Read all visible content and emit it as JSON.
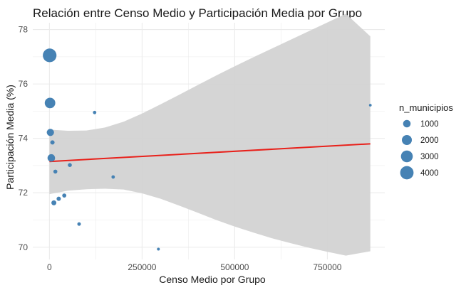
{
  "chart_data": {
    "type": "scatter",
    "title": "Relación entre Censo Medio y Participación Media por Grupo",
    "xlabel": "Censo Medio por Grupo",
    "ylabel": "Participación Media (%)",
    "xlim": [
      -45000,
      905000
    ],
    "ylim": [
      69.55,
      78.25
    ],
    "x_ticks": [
      0,
      250000,
      500000,
      750000
    ],
    "x_tick_labels": [
      "0",
      "250000",
      "500000",
      "750000"
    ],
    "y_ticks": [
      70,
      72,
      74,
      76,
      78
    ],
    "y_tick_labels": [
      "70",
      "72",
      "74",
      "76",
      "78"
    ],
    "grid": true,
    "point_color": "#4682b4",
    "line_color": "#e8211b",
    "band_color": "#d3d3d3",
    "legend_position": "right",
    "legend": {
      "title": "n_municipios",
      "sizes": [
        1000,
        2000,
        3000,
        4000
      ],
      "labels": [
        "1000",
        "2000",
        "3000",
        "4000"
      ]
    },
    "points": [
      {
        "x": 500,
        "y": 77.05,
        "n": 4200
      },
      {
        "x": 1500,
        "y": 75.3,
        "n": 2300
      },
      {
        "x": 2500,
        "y": 74.22,
        "n": 900
      },
      {
        "x": 5000,
        "y": 73.28,
        "n": 1000
      },
      {
        "x": 8000,
        "y": 73.85,
        "n": 200
      },
      {
        "x": 16000,
        "y": 72.78,
        "n": 150
      },
      {
        "x": 12000,
        "y": 71.63,
        "n": 300
      },
      {
        "x": 25000,
        "y": 71.78,
        "n": 200
      },
      {
        "x": 40000,
        "y": 71.9,
        "n": 180
      },
      {
        "x": 55000,
        "y": 73.02,
        "n": 150
      },
      {
        "x": 80000,
        "y": 70.85,
        "n": 100
      },
      {
        "x": 122000,
        "y": 74.95,
        "n": 80
      },
      {
        "x": 172000,
        "y": 72.58,
        "n": 90
      },
      {
        "x": 294000,
        "y": 69.93,
        "n": 40
      },
      {
        "x": 866000,
        "y": 75.22,
        "n": 30
      }
    ],
    "regression": {
      "x": [
        0,
        866000
      ],
      "y": [
        73.15,
        73.8
      ]
    },
    "confidence_band": {
      "x": [
        0,
        50000,
        100000,
        150000,
        200000,
        250000,
        300000,
        350000,
        400000,
        450000,
        500000,
        550000,
        600000,
        650000,
        700000,
        750000,
        800000,
        866000
      ],
      "upper": [
        74.32,
        74.28,
        74.29,
        74.4,
        74.61,
        74.91,
        75.25,
        75.6,
        75.96,
        76.31,
        76.65,
        76.98,
        77.3,
        77.62,
        77.94,
        78.26,
        78.58,
        77.75
      ],
      "lower": [
        71.95,
        72.08,
        72.13,
        72.15,
        72.12,
        71.98,
        71.78,
        71.53,
        71.27,
        71.0,
        70.76,
        70.54,
        70.33,
        70.15,
        69.98,
        69.83,
        69.69,
        69.85
      ]
    }
  }
}
